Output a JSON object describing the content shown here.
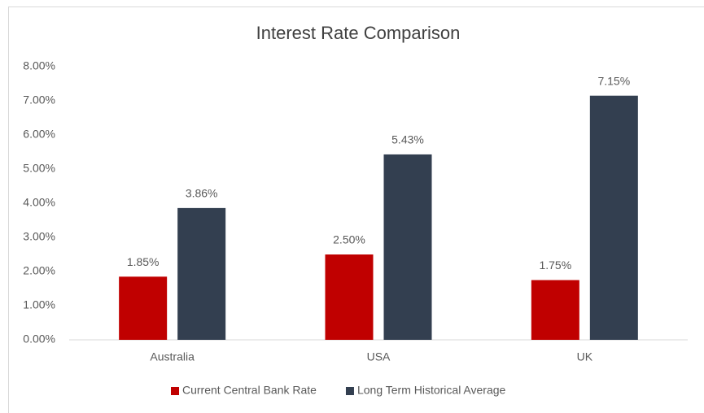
{
  "chart_data": {
    "type": "bar",
    "title": "Interest Rate Comparison",
    "categories": [
      "Australia",
      "USA",
      "UK"
    ],
    "series": [
      {
        "name": "Current Central Bank Rate",
        "color": "#c00000",
        "values": [
          1.85,
          2.5,
          1.75
        ],
        "value_labels": [
          "1.85%",
          "2.50%",
          "1.75%"
        ]
      },
      {
        "name": "Long Term Historical Average",
        "color": "#333f50",
        "values": [
          3.86,
          5.43,
          7.15
        ],
        "value_labels": [
          "3.86%",
          "5.43%",
          "7.15%"
        ]
      }
    ],
    "ylim": [
      0,
      8
    ],
    "yticks": [
      {
        "value": 0,
        "label": "0.00%"
      },
      {
        "value": 1,
        "label": "1.00%"
      },
      {
        "value": 2,
        "label": "2.00%"
      },
      {
        "value": 3,
        "label": "3.00%"
      },
      {
        "value": 4,
        "label": "4.00%"
      },
      {
        "value": 5,
        "label": "5.00%"
      },
      {
        "value": 6,
        "label": "6.00%"
      },
      {
        "value": 7,
        "label": "7.00%"
      },
      {
        "value": 8,
        "label": "8.00%"
      }
    ],
    "grid": false,
    "legend": "bottom"
  }
}
